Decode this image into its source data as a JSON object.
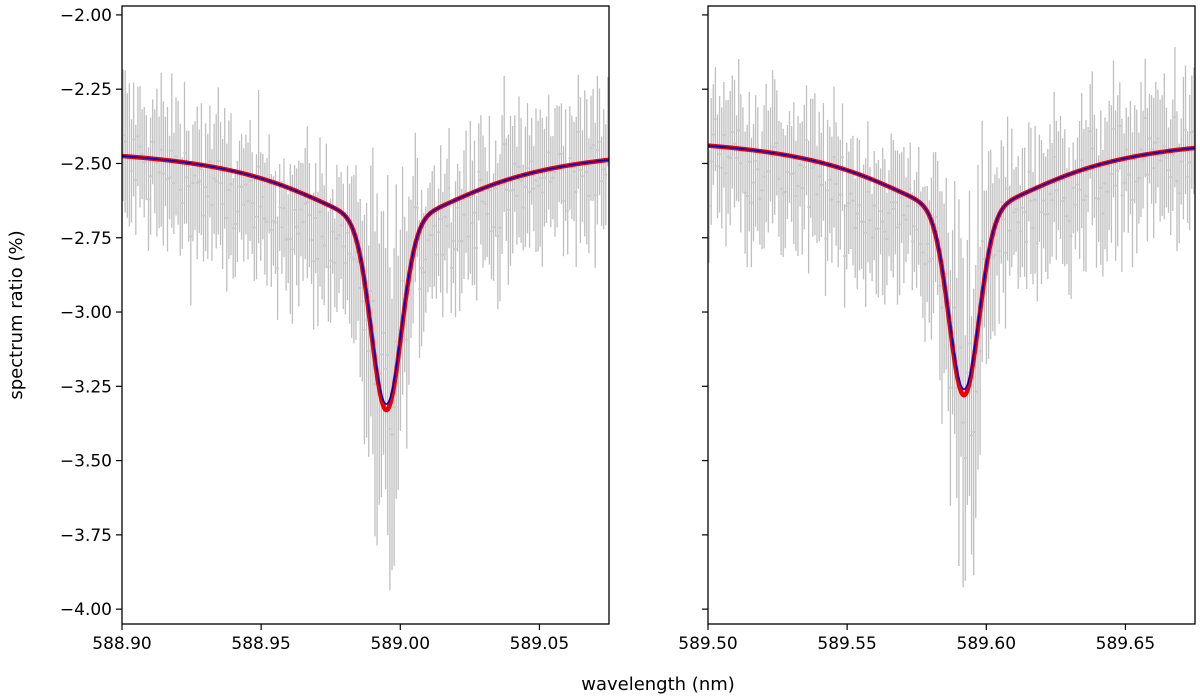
{
  "chart_data": {
    "type": "line",
    "xlabel": "wavelength (nm)",
    "ylabel": "spectrum ratio (%)",
    "ylim": [
      -4.05,
      -1.97
    ],
    "yticks": [
      -2.0,
      -2.25,
      -2.5,
      -2.75,
      -3.0,
      -3.25,
      -3.5,
      -3.75,
      -4.0
    ],
    "ytick_labels": [
      "−2.00",
      "−2.25",
      "−2.50",
      "−2.75",
      "−3.00",
      "−3.25",
      "−3.50",
      "−3.75",
      "−4.00"
    ],
    "grid": false,
    "colors": {
      "data": "#bfbfbf",
      "fit_thin": "#0000cc",
      "fit_thick": "#ee0000"
    },
    "panels": [
      {
        "xlim": [
          588.9,
          589.075
        ],
        "xticks": [
          588.9,
          588.95,
          589.0,
          589.05
        ],
        "xtick_labels": [
          "588.90",
          "588.95",
          "589.00",
          "589.05"
        ],
        "series": [
          {
            "style": "data points with error bars",
            "center": 588.995,
            "baseline_x": [
              588.9,
              588.95,
              589.075
            ],
            "baseline_y": [
              -2.475,
              -2.6,
              -2.49
            ],
            "min_y": -3.33,
            "error_half_width": 0.2
          },
          {
            "style": "model (blue thin)",
            "center": 588.995,
            "edge_y": -2.475,
            "min_y": -3.31
          },
          {
            "style": "model (red thick)",
            "center": 588.995,
            "edge_y": -2.475,
            "min_y": -3.33
          }
        ]
      },
      {
        "xlim": [
          589.5,
          589.675
        ],
        "xticks": [
          589.5,
          589.55,
          589.6,
          589.65
        ],
        "xtick_labels": [
          "589.50",
          "589.55",
          "589.60",
          "589.65"
        ],
        "series": [
          {
            "style": "data points with error bars",
            "center": 589.592,
            "baseline_x": [
              589.5,
              589.55,
              589.675
            ],
            "baseline_y": [
              -2.44,
              -2.55,
              -2.455
            ],
            "min_y": -3.28,
            "error_half_width": 0.2
          },
          {
            "style": "model (blue thin)",
            "center": 589.592,
            "edge_y": -2.44,
            "min_y": -3.26
          },
          {
            "style": "model (red thick)",
            "center": 589.592,
            "edge_y": -2.44,
            "min_y": -3.28
          }
        ]
      }
    ]
  }
}
